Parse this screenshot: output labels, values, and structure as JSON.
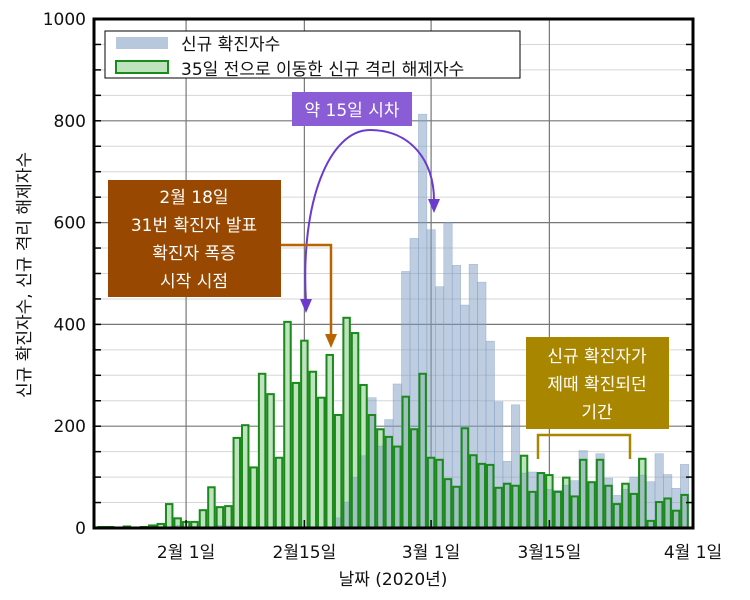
{
  "chart_data": {
    "type": "bar",
    "title": "",
    "xlabel": "날짜 (2020년)",
    "ylabel": "신규 확진자수, 신규 격리 해제자수",
    "ylim": [
      0,
      1000
    ],
    "xlim": [
      "2020-01-21",
      "2020-04-01"
    ],
    "yticks": [
      "0",
      "200",
      "400",
      "600",
      "800",
      "1000"
    ],
    "xticks": [
      {
        "date": "2020-02-01",
        "label": "2월 1일"
      },
      {
        "date": "2020-02-15",
        "label": "2월15일"
      },
      {
        "date": "2020-03-01",
        "label": "3월 1일"
      },
      {
        "date": "2020-03-15",
        "label": "3월15일"
      },
      {
        "date": "2020-04-01",
        "label": "4월 1일"
      }
    ],
    "grid": true,
    "legend_position": "top-left",
    "x": [
      "2020-01-22",
      "2020-01-23",
      "2020-01-24",
      "2020-01-25",
      "2020-01-26",
      "2020-01-27",
      "2020-01-28",
      "2020-01-29",
      "2020-01-30",
      "2020-01-31",
      "2020-02-01",
      "2020-02-02",
      "2020-02-03",
      "2020-02-04",
      "2020-02-05",
      "2020-02-06",
      "2020-02-07",
      "2020-02-08",
      "2020-02-09",
      "2020-02-10",
      "2020-02-11",
      "2020-02-12",
      "2020-02-13",
      "2020-02-14",
      "2020-02-15",
      "2020-02-16",
      "2020-02-17",
      "2020-02-18",
      "2020-02-19",
      "2020-02-20",
      "2020-02-21",
      "2020-02-22",
      "2020-02-23",
      "2020-02-24",
      "2020-02-25",
      "2020-02-26",
      "2020-02-27",
      "2020-02-28",
      "2020-02-29",
      "2020-03-01",
      "2020-03-02",
      "2020-03-03",
      "2020-03-04",
      "2020-03-05",
      "2020-03-06",
      "2020-03-07",
      "2020-03-08",
      "2020-03-09",
      "2020-03-10",
      "2020-03-11",
      "2020-03-12",
      "2020-03-13",
      "2020-03-14",
      "2020-03-15",
      "2020-03-16",
      "2020-03-17",
      "2020-03-18",
      "2020-03-19",
      "2020-03-20",
      "2020-03-21",
      "2020-03-22",
      "2020-03-23",
      "2020-03-24",
      "2020-03-25",
      "2020-03-26",
      "2020-03-27",
      "2020-03-28",
      "2020-03-29",
      "2020-03-30",
      "2020-03-31"
    ],
    "series": [
      {
        "name": "신규 확진자수",
        "color": "#9fb4d0",
        "values": [
          0,
          0,
          1,
          0,
          1,
          1,
          0,
          0,
          2,
          5,
          1,
          3,
          0,
          1,
          5,
          4,
          0,
          0,
          2,
          2,
          0,
          0,
          0,
          0,
          0,
          2,
          1,
          1,
          20,
          51,
          100,
          142,
          256,
          161,
          213,
          283,
          504,
          569,
          813,
          586,
          474,
          600,
          516,
          438,
          518,
          483,
          367,
          248,
          131,
          242,
          108,
          110,
          107,
          76,
          74,
          84,
          93,
          152,
          87,
          146,
          98,
          64,
          76,
          100,
          104,
          91,
          146,
          105,
          78,
          125
        ]
      },
      {
        "name": "35일 전으로 이동한 신규 격리 해제자수",
        "color": "#bfe3bf",
        "edge_color": "#1a8a1a",
        "values": [
          2,
          2,
          1,
          3,
          0,
          2,
          5,
          8,
          47,
          19,
          12,
          12,
          35,
          80,
          41,
          43,
          177,
          202,
          119,
          303,
          263,
          138,
          405,
          285,
          368,
          307,
          256,
          340,
          222,
          413,
          383,
          281,
          222,
          194,
          179,
          160,
          258,
          194,
          303,
          138,
          134,
          96,
          81,
          196,
          143,
          126,
          124,
          79,
          87,
          83,
          142,
          71,
          108,
          104,
          71,
          99,
          62,
          134,
          90,
          134,
          83,
          47,
          87,
          67,
          136,
          14,
          51,
          58,
          34,
          65
        ]
      }
    ],
    "annotations": [
      {
        "id": "lag",
        "text": "약 15일 시차",
        "color": "#8a5cd6",
        "arrow_color": "#6b3bcf"
      },
      {
        "id": "event",
        "lines": [
          "2월 18일",
          "31번 확진자 발표",
          "확진자 폭증",
          "시작 시점"
        ],
        "color": "#984800",
        "arrow_color": "#b86400"
      },
      {
        "id": "period",
        "lines": [
          "신규 확진자가",
          "제때 확진되던",
          "기간"
        ],
        "color": "#a88600"
      }
    ]
  }
}
